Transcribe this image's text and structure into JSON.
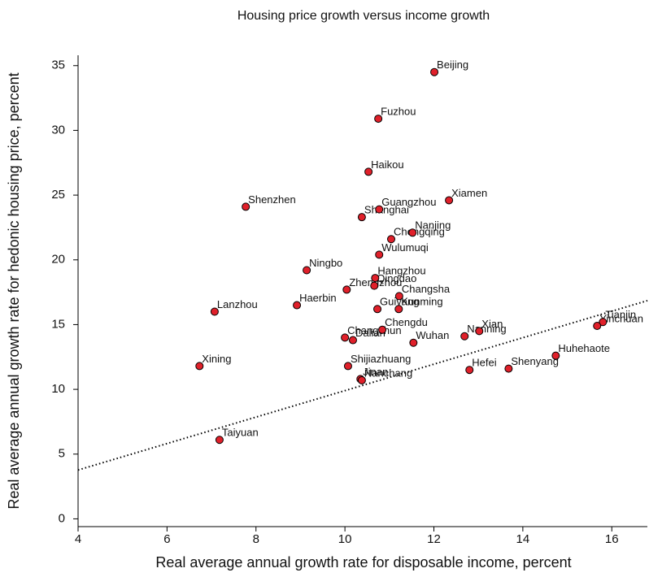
{
  "chart_data": {
    "type": "scatter",
    "title": "Housing price growth versus income growth",
    "xlabel": "Real average annual growth rate for disposable income, percent",
    "ylabel": "Real average annual growth rate for hedonic housing price, percent",
    "labels": [
      "Beijing",
      "Fuzhou",
      "Haikou",
      "Xiamen",
      "Shenzhen",
      "Guangzhou",
      "Shanghai",
      "Nanjing",
      "Chongqing",
      "Wulumuqi",
      "Ningbo",
      "Hangzhou",
      "Qingdao",
      "Zhengzhou",
      "Changsha",
      "Lanzhou",
      "Haerbin",
      "Guiyang",
      "Kunming",
      "Chengdu",
      "Changchun",
      "Dalian",
      "Wuhan",
      "Nanning",
      "Xian",
      "Tianjin",
      "Yinchuan",
      "Huhehaote",
      "Shenyang",
      "Hefei",
      "Xining",
      "Shijiazhuang",
      "Jinan",
      "Nanchang",
      "Taiyuan"
    ],
    "x": [
      12.01,
      10.75,
      10.53,
      12.34,
      7.77,
      10.77,
      10.38,
      11.52,
      11.04,
      10.77,
      9.14,
      10.68,
      10.66,
      10.04,
      11.22,
      7.07,
      8.92,
      10.73,
      11.21,
      10.84,
      10.0,
      10.18,
      11.54,
      12.69,
      13.02,
      15.8,
      15.67,
      14.74,
      13.68,
      12.8,
      6.73,
      10.07,
      10.35,
      10.38,
      7.18
    ],
    "y": [
      34.5,
      30.9,
      26.8,
      24.6,
      24.1,
      23.9,
      23.3,
      22.1,
      21.6,
      20.4,
      19.2,
      18.6,
      18.0,
      17.7,
      17.2,
      16.0,
      16.5,
      16.2,
      16.2,
      14.6,
      14.0,
      13.8,
      13.6,
      14.1,
      14.5,
      15.2,
      14.9,
      12.6,
      11.6,
      11.5,
      11.8,
      11.8,
      10.8,
      10.7,
      6.1
    ],
    "color": "#e0202a",
    "trendline": {
      "x": [
        4,
        16.8
      ],
      "y": [
        3.77,
        16.85
      ]
    },
    "xlim": [
      4,
      16.8
    ],
    "ylim": [
      -0.6,
      35.8
    ],
    "xticks": [
      4,
      6,
      8,
      10,
      12,
      14,
      16
    ],
    "yticks": [
      0,
      5,
      10,
      15,
      20,
      25,
      30,
      35
    ]
  }
}
